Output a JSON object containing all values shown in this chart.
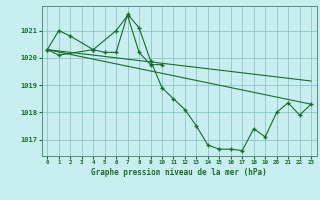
{
  "title": "Graphe pression niveau de la mer (hPa)",
  "bg_color": "#c8eef0",
  "grid_color": "#7fbfbf",
  "line_color": "#1a6b2a",
  "xlim": [
    -0.5,
    23.5
  ],
  "ylim": [
    1016.4,
    1021.9
  ],
  "yticks": [
    1017,
    1018,
    1019,
    1020,
    1021
  ],
  "xticks": [
    0,
    1,
    2,
    3,
    4,
    5,
    6,
    7,
    8,
    9,
    10,
    11,
    12,
    13,
    14,
    15,
    16,
    17,
    18,
    19,
    20,
    21,
    22,
    23
  ],
  "series_main": {
    "x": [
      0,
      1,
      2,
      4,
      5,
      6,
      7,
      8,
      9,
      10,
      11,
      12,
      13,
      14,
      15,
      16,
      17,
      18,
      19,
      20,
      21,
      22,
      23
    ],
    "y": [
      1020.3,
      1021.0,
      1020.8,
      1020.3,
      1020.2,
      1020.2,
      1021.6,
      1021.1,
      1019.9,
      1018.9,
      1018.5,
      1018.1,
      1017.5,
      1016.8,
      1016.65,
      1016.65,
      1016.6,
      1017.4,
      1017.1,
      1018.0,
      1018.35,
      1017.9,
      1018.3
    ]
  },
  "series_short": {
    "x": [
      0,
      1,
      4,
      6,
      7,
      8,
      9,
      10
    ],
    "y": [
      1020.3,
      1020.1,
      1020.3,
      1021.0,
      1021.55,
      1020.2,
      1019.75,
      1019.75
    ]
  },
  "trend_lower": {
    "x": [
      0,
      23
    ],
    "y": [
      1020.3,
      1018.3
    ]
  },
  "trend_upper": {
    "x": [
      0,
      23
    ],
    "y": [
      1020.3,
      1019.15
    ]
  }
}
